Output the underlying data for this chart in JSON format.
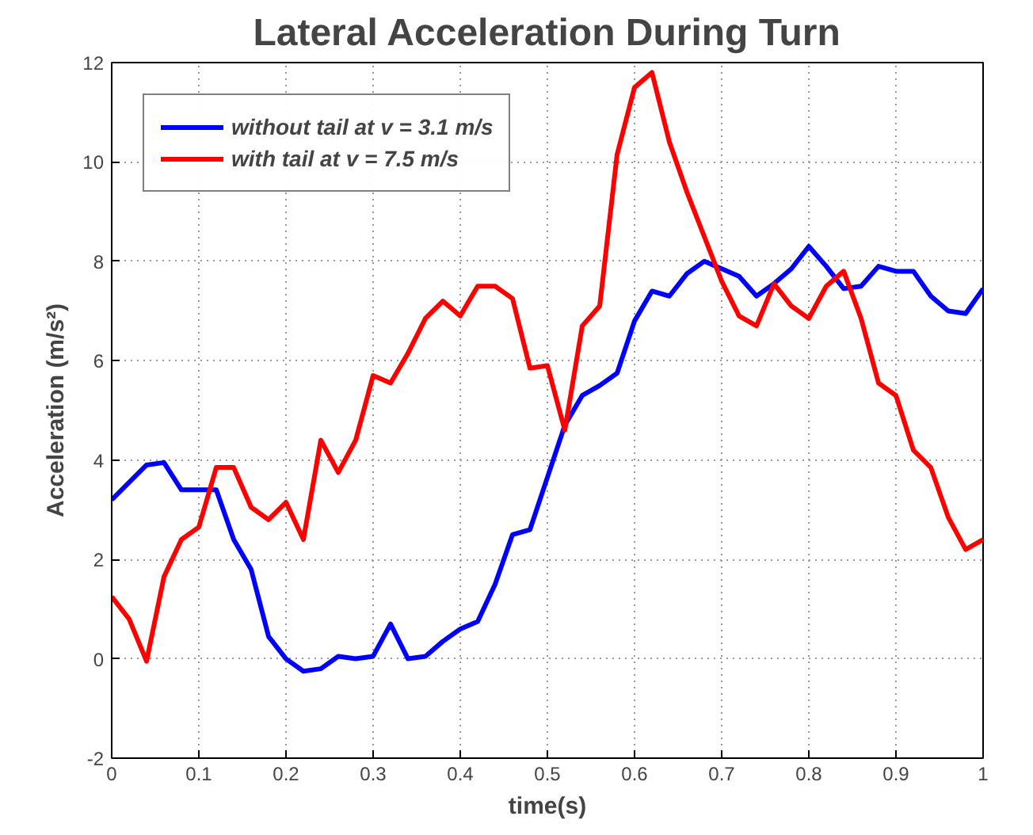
{
  "chart_data": {
    "type": "line",
    "title": "Lateral Acceleration During Turn",
    "xlabel": "time(s)",
    "ylabel": "Acceleration (m/s²)",
    "x": [
      0,
      0.02,
      0.04,
      0.06,
      0.08,
      0.1,
      0.12,
      0.14,
      0.16,
      0.18,
      0.2,
      0.22,
      0.24,
      0.26,
      0.28,
      0.3,
      0.32,
      0.34,
      0.36,
      0.38,
      0.4,
      0.42,
      0.44,
      0.46,
      0.48,
      0.5,
      0.52,
      0.54,
      0.56,
      0.58,
      0.6,
      0.62,
      0.64,
      0.66,
      0.68,
      0.7,
      0.72,
      0.74,
      0.76,
      0.78,
      0.8,
      0.82,
      0.84,
      0.86,
      0.88,
      0.9,
      0.92,
      0.94,
      0.96,
      0.98,
      1.0
    ],
    "series": [
      {
        "name": "without tail at v = 3.1 m/s",
        "color": "#0000ff",
        "values": [
          3.2,
          3.55,
          3.9,
          3.95,
          3.4,
          3.4,
          3.4,
          2.4,
          1.8,
          0.45,
          0.0,
          -0.25,
          -0.2,
          0.05,
          0.0,
          0.05,
          0.7,
          0.0,
          0.05,
          0.35,
          0.6,
          0.75,
          1.5,
          2.5,
          2.6,
          3.65,
          4.7,
          5.3,
          5.5,
          5.75,
          6.8,
          7.4,
          7.3,
          7.75,
          8.0,
          7.85,
          7.7,
          7.3,
          7.55,
          7.85,
          8.3,
          7.9,
          7.45,
          7.5,
          7.9,
          7.8,
          7.8,
          7.3,
          7.0,
          6.95,
          7.45
        ]
      },
      {
        "name": "with tail at v = 7.5 m/s",
        "color": "#ff0000",
        "values": [
          1.25,
          0.8,
          -0.05,
          1.65,
          2.4,
          2.65,
          3.85,
          3.85,
          3.05,
          2.8,
          3.15,
          2.4,
          4.4,
          3.75,
          4.4,
          5.7,
          5.55,
          6.15,
          6.85,
          7.2,
          6.9,
          7.5,
          7.5,
          7.25,
          5.85,
          5.9,
          4.6,
          6.7,
          7.1,
          10.15,
          11.5,
          11.8,
          10.4,
          9.4,
          8.5,
          7.6,
          6.9,
          6.7,
          7.55,
          7.1,
          6.85,
          7.5,
          7.8,
          6.85,
          5.55,
          5.3,
          4.2,
          3.85,
          2.85,
          2.2,
          2.4
        ]
      }
    ],
    "xlim": [
      0,
      1
    ],
    "ylim": [
      -2,
      12
    ],
    "xticks": [
      0,
      0.1,
      0.2,
      0.3,
      0.4,
      0.5,
      0.6,
      0.7,
      0.8,
      0.9,
      1
    ],
    "yticks": [
      -2,
      0,
      2,
      4,
      6,
      8,
      10,
      12
    ],
    "grid": true,
    "legend": "top left",
    "line_style": "solid"
  }
}
